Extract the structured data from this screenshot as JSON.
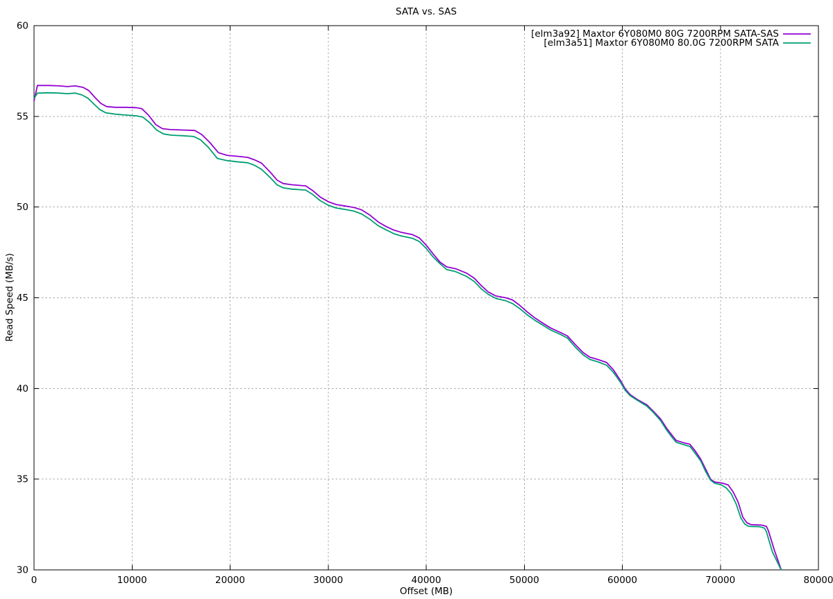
{
  "chart_data": {
    "type": "line",
    "title": "SATA vs. SAS",
    "xlabel": "Offset (MB)",
    "ylabel": "Read Speed (MB/s)",
    "xlim": [
      0,
      80000
    ],
    "ylim": [
      30,
      60
    ],
    "xticks": [
      0,
      10000,
      20000,
      30000,
      40000,
      50000,
      60000,
      70000,
      80000
    ],
    "xtick_labels": [
      "0",
      "10000",
      "20000",
      "30000",
      "40000",
      "50000",
      "60000",
      "70000",
      "80000"
    ],
    "yticks": [
      30,
      35,
      40,
      45,
      50,
      55,
      60
    ],
    "ytick_labels": [
      "30",
      "35",
      "40",
      "45",
      "50",
      "55",
      "60"
    ],
    "grid": true,
    "grid_style": "dotted",
    "legend_position": "top-right-inside",
    "colors": {
      "series_sata_sas": "#9400d3",
      "series_sata": "#009e73",
      "grid": "#a8a8a8",
      "axis": "#000000",
      "background": "#ffffff"
    },
    "series": [
      {
        "key": "sata-sas",
        "name": "[elm3a92] Maxtor 6Y080M0 80G 7200RPM SATA-SAS",
        "color": "#9400d3",
        "points": [
          [
            0,
            55.85
          ],
          [
            350,
            56.7
          ],
          [
            1500,
            56.7
          ],
          [
            2600,
            56.68
          ],
          [
            3400,
            56.64
          ],
          [
            4200,
            56.68
          ],
          [
            5000,
            56.6
          ],
          [
            5600,
            56.42
          ],
          [
            6200,
            56.05
          ],
          [
            6800,
            55.72
          ],
          [
            7400,
            55.54
          ],
          [
            8300,
            55.5
          ],
          [
            9400,
            55.5
          ],
          [
            10400,
            55.48
          ],
          [
            11000,
            55.42
          ],
          [
            11700,
            55.05
          ],
          [
            12400,
            54.55
          ],
          [
            13100,
            54.32
          ],
          [
            13900,
            54.27
          ],
          [
            15100,
            54.25
          ],
          [
            16400,
            54.22
          ],
          [
            17100,
            54.0
          ],
          [
            17900,
            53.58
          ],
          [
            18800,
            53.0
          ],
          [
            19700,
            52.85
          ],
          [
            20700,
            52.8
          ],
          [
            21800,
            52.74
          ],
          [
            22500,
            52.6
          ],
          [
            23200,
            52.42
          ],
          [
            24100,
            51.92
          ],
          [
            24800,
            51.48
          ],
          [
            25400,
            51.3
          ],
          [
            26300,
            51.23
          ],
          [
            27700,
            51.17
          ],
          [
            28400,
            50.92
          ],
          [
            29200,
            50.55
          ],
          [
            30000,
            50.3
          ],
          [
            30800,
            50.14
          ],
          [
            31600,
            50.07
          ],
          [
            32600,
            49.98
          ],
          [
            33400,
            49.85
          ],
          [
            34200,
            49.58
          ],
          [
            35100,
            49.18
          ],
          [
            35900,
            48.93
          ],
          [
            36700,
            48.73
          ],
          [
            37500,
            48.6
          ],
          [
            38600,
            48.48
          ],
          [
            39300,
            48.3
          ],
          [
            40000,
            47.9
          ],
          [
            40700,
            47.42
          ],
          [
            41400,
            46.97
          ],
          [
            42100,
            46.7
          ],
          [
            43000,
            46.6
          ],
          [
            44100,
            46.36
          ],
          [
            44900,
            46.08
          ],
          [
            45600,
            45.68
          ],
          [
            46300,
            45.33
          ],
          [
            47100,
            45.1
          ],
          [
            48100,
            45.0
          ],
          [
            48800,
            44.88
          ],
          [
            49500,
            44.6
          ],
          [
            50300,
            44.22
          ],
          [
            51100,
            43.88
          ],
          [
            51800,
            43.63
          ],
          [
            52700,
            43.33
          ],
          [
            53700,
            43.08
          ],
          [
            54400,
            42.9
          ],
          [
            55200,
            42.42
          ],
          [
            56000,
            41.98
          ],
          [
            56700,
            41.72
          ],
          [
            57500,
            41.6
          ],
          [
            58400,
            41.43
          ],
          [
            59100,
            41.02
          ],
          [
            59800,
            40.45
          ],
          [
            60300,
            39.98
          ],
          [
            60800,
            39.66
          ],
          [
            61500,
            39.4
          ],
          [
            62500,
            39.1
          ],
          [
            63200,
            38.72
          ],
          [
            63900,
            38.32
          ],
          [
            64500,
            37.82
          ],
          [
            65000,
            37.47
          ],
          [
            65500,
            37.13
          ],
          [
            66300,
            37.0
          ],
          [
            66900,
            36.92
          ],
          [
            67400,
            36.58
          ],
          [
            68000,
            36.1
          ],
          [
            68500,
            35.55
          ],
          [
            69000,
            35.0
          ],
          [
            69400,
            34.85
          ],
          [
            70200,
            34.78
          ],
          [
            70800,
            34.68
          ],
          [
            71300,
            34.3
          ],
          [
            71800,
            33.75
          ],
          [
            72300,
            32.9
          ],
          [
            72700,
            32.6
          ],
          [
            73100,
            32.5
          ],
          [
            74200,
            32.47
          ],
          [
            74700,
            32.4
          ],
          [
            74900,
            32.15
          ],
          [
            75500,
            31.1
          ],
          [
            76200,
            30.02
          ]
        ]
      },
      {
        "key": "sata",
        "name": "[elm3a51] Maxtor 6Y080M0 80.0G 7200RPM SATA",
        "color": "#009e73",
        "points": [
          [
            0,
            56.0
          ],
          [
            350,
            56.28
          ],
          [
            1500,
            56.3
          ],
          [
            2600,
            56.28
          ],
          [
            3400,
            56.25
          ],
          [
            4200,
            56.28
          ],
          [
            4900,
            56.18
          ],
          [
            5500,
            56.0
          ],
          [
            6100,
            55.68
          ],
          [
            6700,
            55.38
          ],
          [
            7300,
            55.2
          ],
          [
            8300,
            55.12
          ],
          [
            9400,
            55.07
          ],
          [
            10400,
            55.03
          ],
          [
            11100,
            54.96
          ],
          [
            11800,
            54.65
          ],
          [
            12500,
            54.25
          ],
          [
            13200,
            54.03
          ],
          [
            14000,
            53.96
          ],
          [
            15200,
            53.93
          ],
          [
            16300,
            53.89
          ],
          [
            17000,
            53.7
          ],
          [
            17800,
            53.28
          ],
          [
            18700,
            52.68
          ],
          [
            19700,
            52.56
          ],
          [
            20700,
            52.5
          ],
          [
            21800,
            52.44
          ],
          [
            22500,
            52.3
          ],
          [
            23200,
            52.08
          ],
          [
            24100,
            51.62
          ],
          [
            24800,
            51.22
          ],
          [
            25400,
            51.06
          ],
          [
            26300,
            50.99
          ],
          [
            27700,
            50.94
          ],
          [
            28400,
            50.7
          ],
          [
            29200,
            50.35
          ],
          [
            30000,
            50.1
          ],
          [
            30800,
            49.95
          ],
          [
            31600,
            49.88
          ],
          [
            32600,
            49.78
          ],
          [
            33400,
            49.62
          ],
          [
            34200,
            49.35
          ],
          [
            35100,
            48.97
          ],
          [
            35900,
            48.75
          ],
          [
            36700,
            48.53
          ],
          [
            37500,
            48.4
          ],
          [
            38600,
            48.28
          ],
          [
            39300,
            48.1
          ],
          [
            40000,
            47.72
          ],
          [
            40700,
            47.25
          ],
          [
            41400,
            46.88
          ],
          [
            42100,
            46.55
          ],
          [
            43000,
            46.44
          ],
          [
            44100,
            46.18
          ],
          [
            44900,
            45.9
          ],
          [
            45600,
            45.5
          ],
          [
            46300,
            45.2
          ],
          [
            47100,
            44.96
          ],
          [
            48100,
            44.84
          ],
          [
            48800,
            44.68
          ],
          [
            49500,
            44.42
          ],
          [
            50300,
            44.06
          ],
          [
            51100,
            43.75
          ],
          [
            51800,
            43.52
          ],
          [
            52700,
            43.22
          ],
          [
            53700,
            42.98
          ],
          [
            54400,
            42.78
          ],
          [
            55200,
            42.28
          ],
          [
            56000,
            41.86
          ],
          [
            56700,
            41.6
          ],
          [
            57500,
            41.47
          ],
          [
            58400,
            41.28
          ],
          [
            59100,
            40.88
          ],
          [
            59800,
            40.35
          ],
          [
            60300,
            39.9
          ],
          [
            60800,
            39.6
          ],
          [
            61500,
            39.36
          ],
          [
            62500,
            39.03
          ],
          [
            63200,
            38.66
          ],
          [
            63900,
            38.23
          ],
          [
            64500,
            37.72
          ],
          [
            65000,
            37.36
          ],
          [
            65500,
            37.03
          ],
          [
            66300,
            36.9
          ],
          [
            66900,
            36.8
          ],
          [
            67400,
            36.45
          ],
          [
            68000,
            36.0
          ],
          [
            68500,
            35.42
          ],
          [
            69000,
            34.95
          ],
          [
            69400,
            34.78
          ],
          [
            70100,
            34.68
          ],
          [
            70600,
            34.52
          ],
          [
            71100,
            34.2
          ],
          [
            71600,
            33.65
          ],
          [
            72100,
            32.85
          ],
          [
            72500,
            32.52
          ],
          [
            72900,
            32.4
          ],
          [
            74000,
            32.38
          ],
          [
            74500,
            32.3
          ],
          [
            74700,
            32.1
          ],
          [
            75300,
            31.0
          ],
          [
            76200,
            30.0
          ]
        ]
      }
    ]
  }
}
